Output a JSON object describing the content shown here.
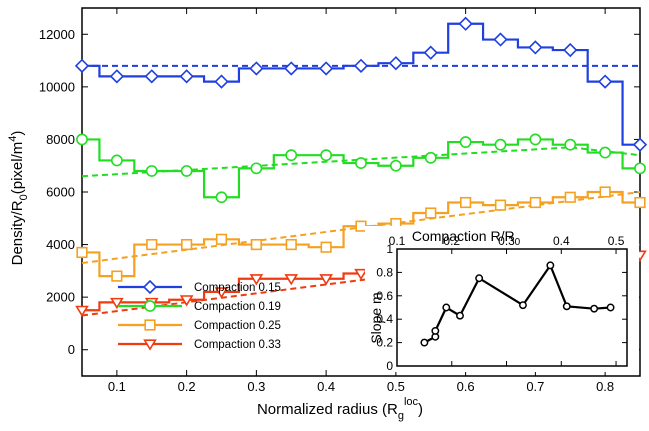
{
  "chart_data": [
    {
      "type": "line",
      "xlabel": "Normalized radius (R",
      "xlabel_sub": "g",
      "xlabel_sup": "loc",
      "xlabel_end": ")",
      "ylabel": "Density/R",
      "ylabel_sub": "0",
      "ylabel_mid": "(pixel/m",
      "ylabel_sup": "4",
      "ylabel_end": ")",
      "xlim": [
        0.05,
        0.85
      ],
      "ylim": [
        -1000,
        13000
      ],
      "xticks": [
        0.1,
        0.2,
        0.3,
        0.4,
        0.5,
        0.6,
        0.7,
        0.8
      ],
      "xtick_labels": [
        "0.1",
        "0.2",
        "0.3",
        "0.4",
        "0.5",
        "0.6",
        "0.7",
        "0.8"
      ],
      "yticks": [
        0,
        2000,
        4000,
        6000,
        8000,
        10000,
        12000
      ],
      "ytick_labels": [
        "0",
        "2000",
        "4000",
        "6000",
        "8000",
        "10000",
        "12000"
      ],
      "legend_position": "bottom-left",
      "x": [
        0.05,
        0.1,
        0.15,
        0.2,
        0.25,
        0.3,
        0.35,
        0.4,
        0.45,
        0.5,
        0.55,
        0.6,
        0.65,
        0.7,
        0.75,
        0.8,
        0.85
      ],
      "series": [
        {
          "name": "Compaction 0.15",
          "color": "#1f3fe0",
          "marker": "diamond",
          "values": [
            10800,
            10400,
            10400,
            10400,
            10200,
            10700,
            10700,
            10700,
            10800,
            10900,
            11300,
            12400,
            11800,
            11500,
            11400,
            10200,
            7800
          ],
          "fit": [
            10800,
            10800
          ]
        },
        {
          "name": "Compaction 0.19",
          "color": "#22dd22",
          "marker": "circle",
          "values": [
            8000,
            7200,
            6800,
            6800,
            5800,
            6900,
            7400,
            7400,
            7100,
            7000,
            7300,
            7900,
            7800,
            8000,
            7800,
            7500,
            6900
          ],
          "fit_x": [
            0.05,
            0.75,
            0.85
          ],
          "fit": [
            6600,
            7700,
            7400
          ]
        },
        {
          "name": "Compaction 0.25",
          "color": "#f5a020",
          "marker": "square",
          "values": [
            3700,
            2800,
            4000,
            4000,
            4200,
            4000,
            4000,
            3900,
            4700,
            4800,
            5200,
            5600,
            5500,
            5600,
            5800,
            6000,
            5600
          ],
          "fit_x": [
            0.05,
            0.85
          ],
          "fit": [
            3300,
            6000
          ]
        },
        {
          "name": "Compaction 0.33",
          "color": "#f03a10",
          "marker": "triangle-down",
          "values": [
            1500,
            1800,
            1800,
            1900,
            2200,
            2700,
            2700,
            2700,
            2900,
            3200,
            3600,
            3800,
            4200,
            4000,
            3700,
            3900,
            3600
          ],
          "fit_x": [
            0.05,
            0.85
          ],
          "fit": [
            1300,
            4000
          ]
        }
      ]
    },
    {
      "type": "line",
      "xlabel": "Compaction R/R",
      "xlabel_sub": "0",
      "ylabel": "Slope m",
      "xlim": [
        0.1,
        0.52
      ],
      "ylim": [
        0,
        1.0
      ],
      "xticks": [
        0.1,
        0.2,
        0.3,
        0.4,
        0.5
      ],
      "xtick_labels": [
        "0.1",
        "0.2",
        "0.3",
        "0.4",
        "0.5"
      ],
      "yticks": [
        0,
        0.2,
        0.4,
        0.6,
        0.8
      ],
      "ytick_labels": [
        "0",
        "0.2",
        "0.4",
        "0.6",
        "0.8"
      ],
      "yticks_top_extra": [
        1.0
      ],
      "ytick_top_label": "1",
      "x": [
        0.15,
        0.17,
        0.17,
        0.19,
        0.215,
        0.25,
        0.33,
        0.38,
        0.41,
        0.46,
        0.49
      ],
      "values": [
        0.2,
        0.25,
        0.3,
        0.5,
        0.43,
        0.75,
        0.52,
        0.86,
        0.51,
        0.49,
        0.5
      ]
    }
  ]
}
